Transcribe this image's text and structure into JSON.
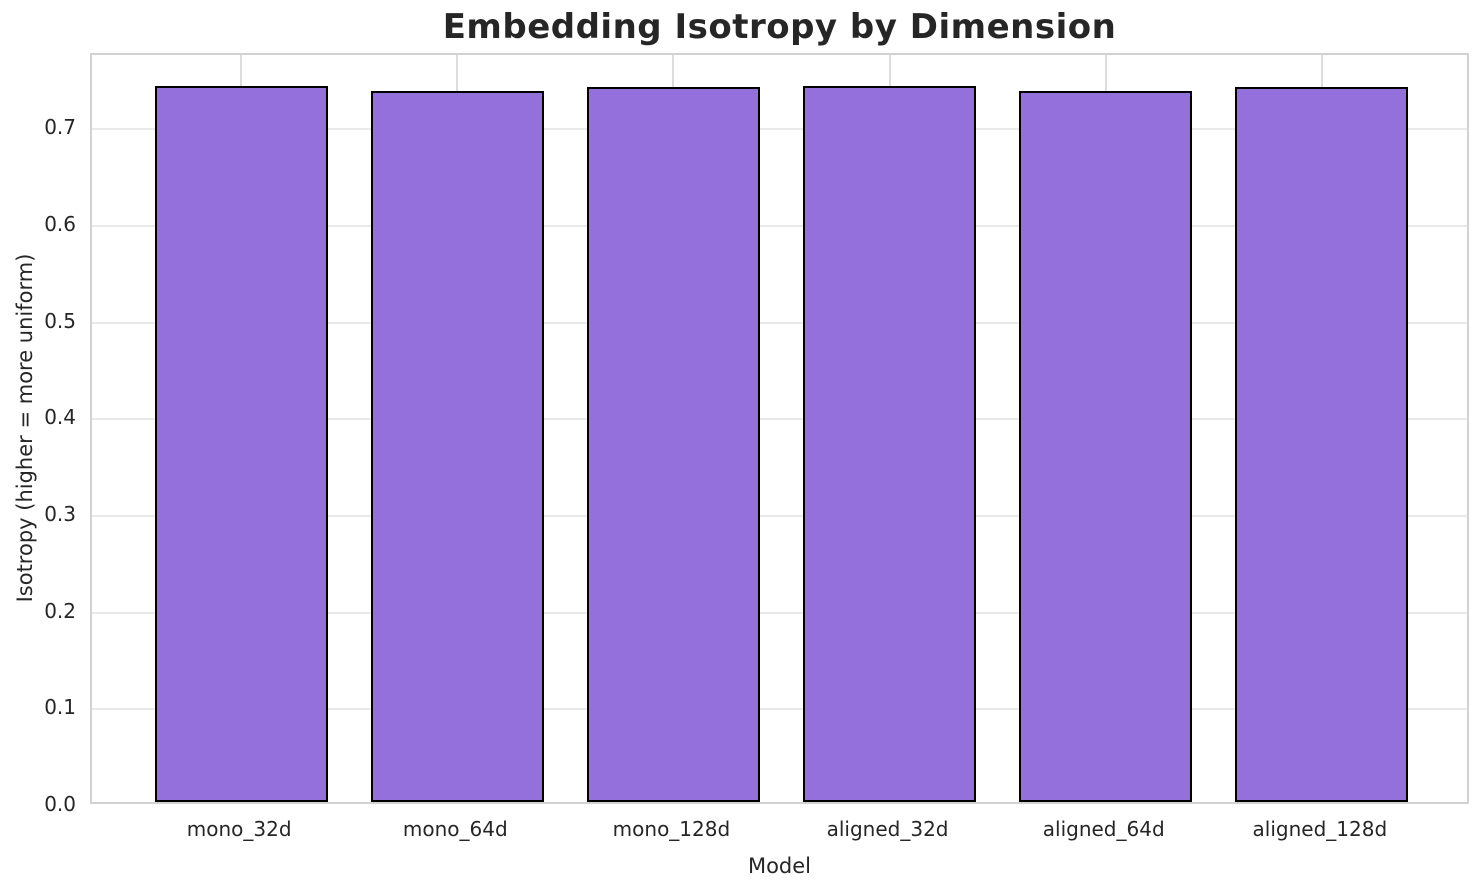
{
  "chart_data": {
    "type": "bar",
    "title": "Embedding Isotropy by Dimension",
    "xlabel": "Model",
    "ylabel": "Isotropy (higher = more uniform)",
    "categories": [
      "mono_32d",
      "mono_64d",
      "mono_128d",
      "aligned_32d",
      "aligned_64d",
      "aligned_128d"
    ],
    "values": [
      0.741,
      0.736,
      0.74,
      0.741,
      0.736,
      0.74
    ],
    "yticks": [
      0.0,
      0.1,
      0.2,
      0.3,
      0.4,
      0.5,
      0.6,
      0.7
    ],
    "ylim": [
      0,
      0.777
    ],
    "grid": true,
    "legend_position": "none",
    "bar_width_fraction": 0.8,
    "colors": {
      "bar_fill": "#9370DB",
      "bar_edge": "#000000",
      "grid_horizontal": "#e9e9e9",
      "grid_vertical": "#dcdcdc",
      "plot_border": "#d2d2d2",
      "text": "#262626",
      "background": "#ffffff"
    }
  }
}
